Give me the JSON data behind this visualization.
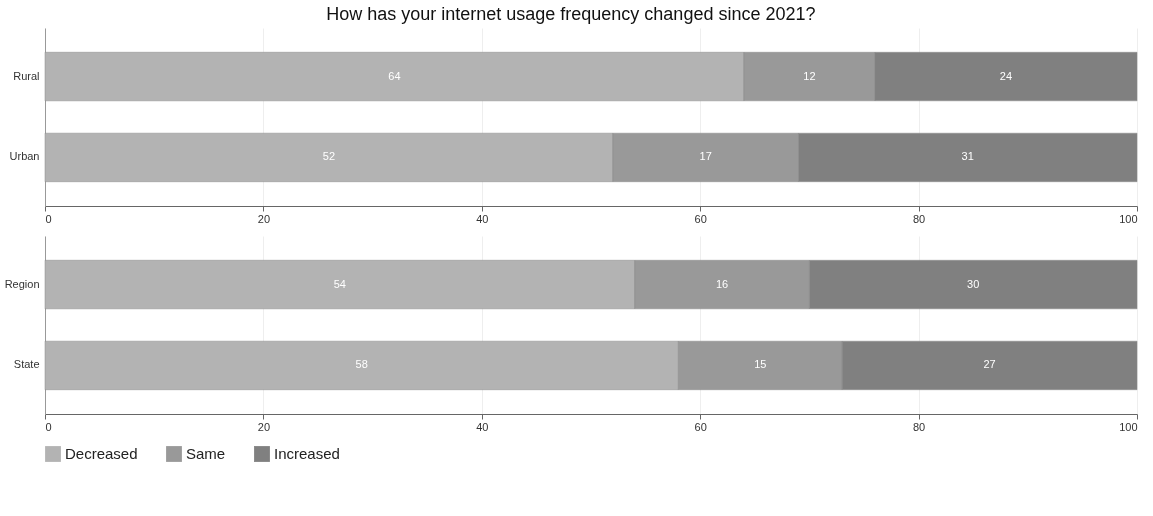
{
  "chart_data": [
    {
      "type": "bar",
      "title": "How has your internet usage frequency changed since 2021?",
      "orientation": "horizontal",
      "stacked": true,
      "categories": [
        "Rural",
        "Urban"
      ],
      "series": [
        {
          "name": "Decreased",
          "color": "#b3b3b3",
          "values": [
            64,
            52
          ]
        },
        {
          "name": "Same",
          "color": "#999999",
          "values": [
            12,
            17
          ]
        },
        {
          "name": "Increased",
          "color": "#808080",
          "values": [
            24,
            31
          ]
        }
      ],
      "xlim": [
        0,
        100
      ],
      "xticks": [
        0,
        20,
        40,
        60,
        80,
        100
      ],
      "grid": "x",
      "data_labels": true,
      "legend": "bottom"
    },
    {
      "type": "bar",
      "orientation": "horizontal",
      "stacked": true,
      "categories": [
        "Region",
        "State"
      ],
      "series": [
        {
          "name": "Decreased",
          "color": "#b3b3b3",
          "values": [
            54,
            58
          ]
        },
        {
          "name": "Same",
          "color": "#999999",
          "values": [
            16,
            15
          ]
        },
        {
          "name": "Increased",
          "color": "#808080",
          "values": [
            30,
            27
          ]
        }
      ],
      "xlim": [
        0,
        100
      ],
      "xticks": [
        0,
        20,
        40,
        60,
        80,
        100
      ],
      "grid": "x",
      "data_labels": true,
      "legend": "bottom"
    }
  ]
}
